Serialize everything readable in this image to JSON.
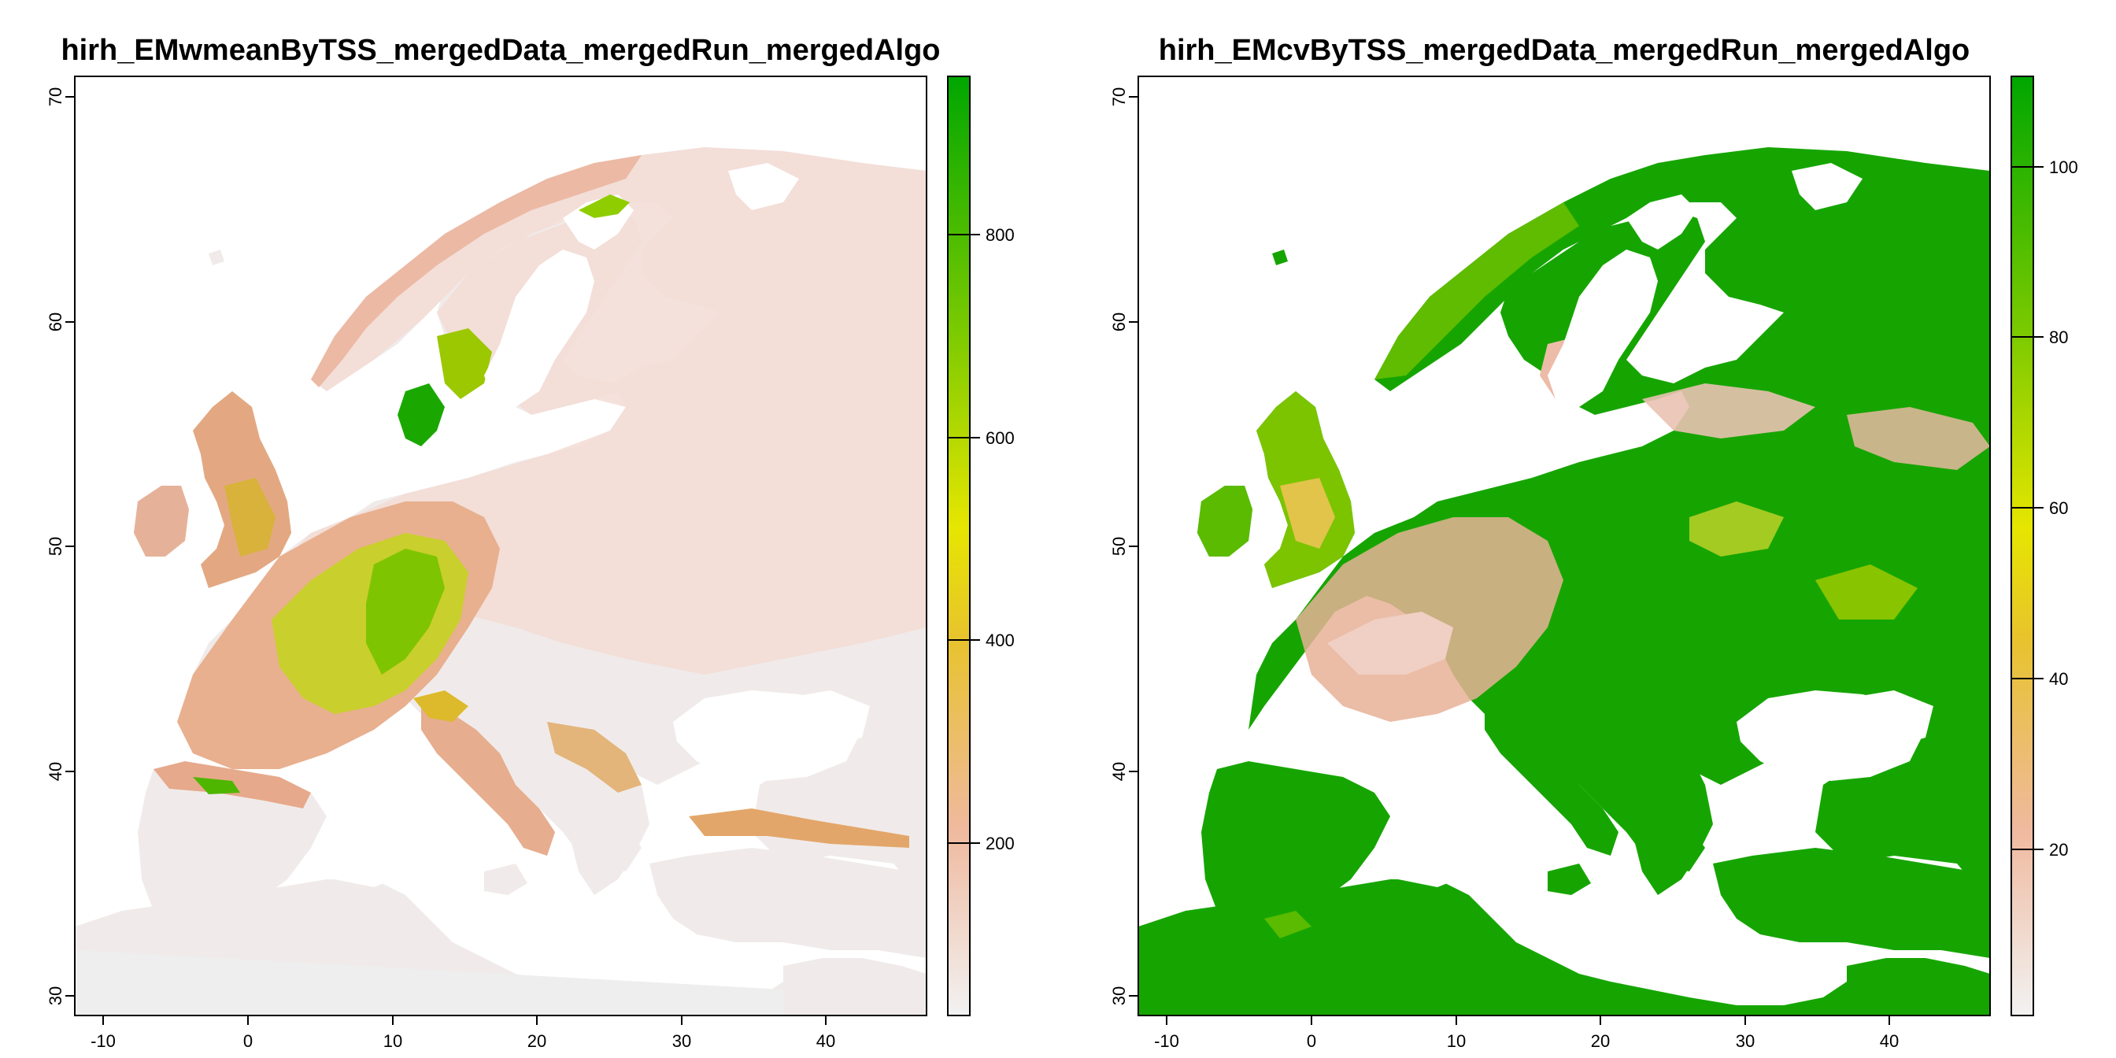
{
  "maps": [
    {
      "title": "hirh_EMwmeanByTSS_mergedData_mergedRun_mergedAlgo",
      "x_ticks": [
        "-10",
        "0",
        "10",
        "20",
        "30",
        "40"
      ],
      "y_ticks": [
        "30",
        "40",
        "50",
        "60",
        "70"
      ],
      "legend_ticks": [
        "200",
        "400",
        "600",
        "800"
      ],
      "legend_range": [
        0,
        950
      ],
      "legend_colors": [
        "#f2f2f2",
        "#efb99e",
        "#e8c32e",
        "#e6e600",
        "#7fcb00",
        "#00a600"
      ]
    },
    {
      "title": "hirh_EMcvByTSS_mergedData_mergedRun_mergedAlgo",
      "x_ticks": [
        "-10",
        "0",
        "10",
        "20",
        "30",
        "40"
      ],
      "y_ticks": [
        "30",
        "40",
        "50",
        "60",
        "70"
      ],
      "legend_ticks": [
        "20",
        "40",
        "60",
        "80",
        "100"
      ],
      "legend_range": [
        0,
        110
      ],
      "legend_colors": [
        "#f2f2f2",
        "#efb99e",
        "#e8c32e",
        "#e6e600",
        "#7fcb00",
        "#00a600"
      ]
    }
  ],
  "axes": {
    "x_range": [
      -11,
      47
    ],
    "y_range": [
      29.5,
      71
    ]
  }
}
